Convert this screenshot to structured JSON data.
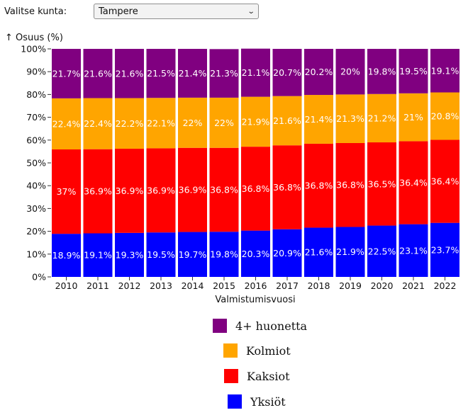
{
  "kunta": {
    "label": "Valitse kunta:",
    "selected": "Tampere"
  },
  "colors": {
    "yksiot": "#0000ff",
    "kaksiot": "#ff0000",
    "kolmiot": "#ffa500",
    "neljaplus": "#800080"
  },
  "chart_data": {
    "type": "bar",
    "stacked": true,
    "ylabel": "↑ Osuus (%)",
    "xlabel": "Valmistumisvuosi",
    "ylim": [
      0,
      100
    ],
    "yticks": [
      "0%",
      "10%",
      "20%",
      "30%",
      "40%",
      "50%",
      "60%",
      "70%",
      "80%",
      "90%",
      "100%"
    ],
    "categories": [
      "2010",
      "2011",
      "2012",
      "2013",
      "2014",
      "2015",
      "2016",
      "2017",
      "2018",
      "2019",
      "2020",
      "2021",
      "2022"
    ],
    "series": [
      {
        "name": "Yksiöt",
        "color": "#0000ff",
        "values": [
          18.9,
          19.1,
          19.3,
          19.5,
          19.7,
          19.8,
          20.3,
          20.9,
          21.6,
          21.9,
          22.5,
          23.1,
          23.7
        ]
      },
      {
        "name": "Kaksiot",
        "color": "#ff0000",
        "values": [
          37,
          36.9,
          36.9,
          36.9,
          36.9,
          36.8,
          36.8,
          36.8,
          36.8,
          36.8,
          36.5,
          36.4,
          36.4
        ]
      },
      {
        "name": "Kolmiot",
        "color": "#ffa500",
        "values": [
          22.4,
          22.4,
          22.2,
          22.1,
          22,
          22,
          21.9,
          21.6,
          21.4,
          21.3,
          21.2,
          21,
          20.8
        ]
      },
      {
        "name": "4+ huonetta",
        "color": "#800080",
        "values": [
          21.7,
          21.6,
          21.6,
          21.5,
          21.4,
          21.3,
          21.1,
          20.7,
          20.2,
          20,
          19.8,
          19.5,
          19.1
        ]
      }
    ],
    "legend": [
      "4+ huonetta",
      "Kolmiot",
      "Kaksiot",
      "Yksiöt"
    ]
  }
}
